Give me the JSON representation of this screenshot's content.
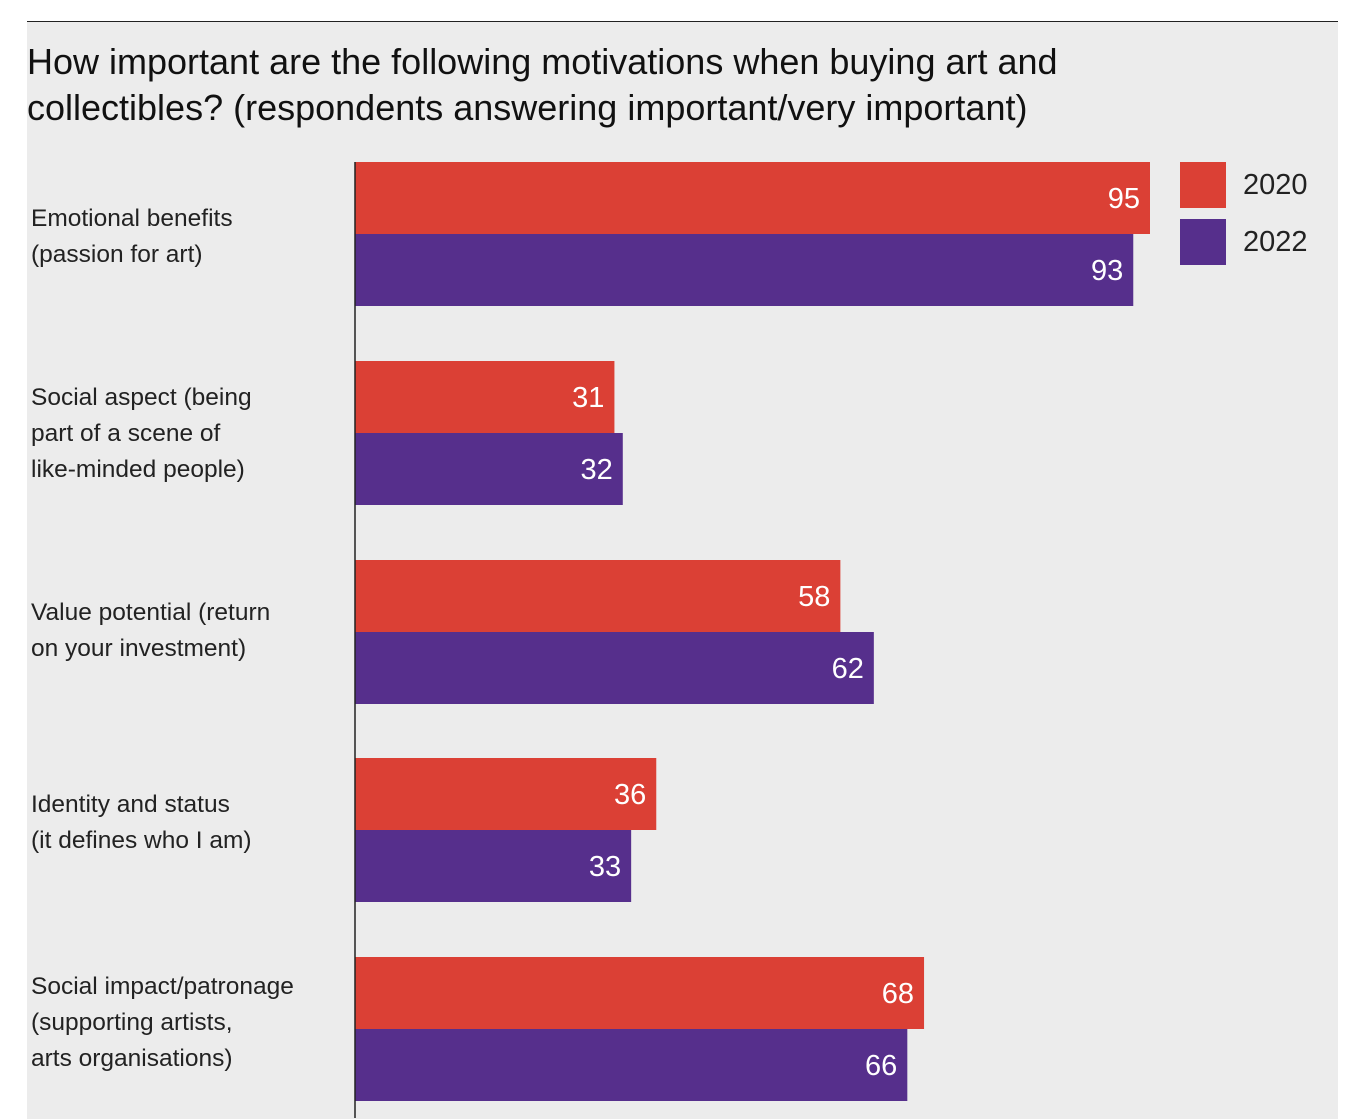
{
  "colors": {
    "series_2020": "#db4035",
    "series_2022": "#562f8c",
    "background": "#ececec",
    "axis": "#222222",
    "value_label": "#ffffff"
  },
  "chart_data": {
    "type": "bar",
    "orientation": "horizontal",
    "title_lines": [
      "How important are the following motivations when buying art and",
      "collectibles? (respondents answering important/very important)"
    ],
    "categories": [
      [
        "Emotional benefits",
        "(passion for art)"
      ],
      [
        "Social aspect (being",
        "part of a scene of",
        "like-minded people)"
      ],
      [
        "Value potential (return",
        "on your investment)"
      ],
      [
        "Identity and status",
        "(it defines who I am)"
      ],
      [
        "Social impact/patronage",
        "(supporting artists,",
        "arts organisations)"
      ]
    ],
    "series": [
      {
        "name": "2020",
        "values": [
          95,
          31,
          58,
          36,
          68
        ]
      },
      {
        "name": "2022",
        "values": [
          93,
          32,
          62,
          33,
          66
        ]
      }
    ],
    "xlim": [
      0,
      100
    ],
    "grid": false,
    "legend": "top-right",
    "data_labels": true
  }
}
